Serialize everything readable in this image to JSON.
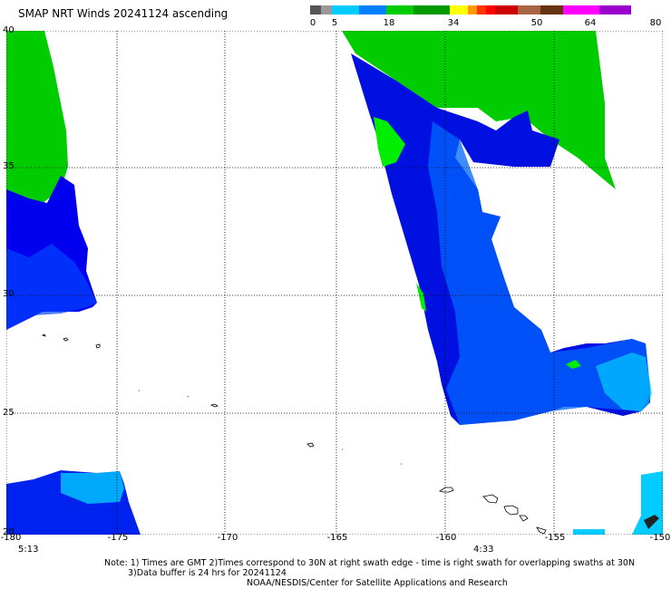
{
  "title": "SMAP NRT Winds 20241124 ascending",
  "scale": {
    "labels": [
      "0",
      "5",
      "18",
      "34",
      "50",
      "64",
      "80"
    ],
    "colors": [
      "#555555",
      "#999999",
      "#00ccff",
      "#0080ff",
      "#00cc00",
      "#009900",
      "#ffff00",
      "#ff9900",
      "#ff3300",
      "#ff0000",
      "#cc0000",
      "#aa6644",
      "#663311",
      "#ff00ff",
      "#9900cc"
    ]
  },
  "map": {
    "lat_labels": [
      "40",
      "35",
      "30",
      "25",
      "20"
    ],
    "lon_labels": [
      "-180",
      "-175",
      "-170",
      "-165",
      "-160",
      "-155",
      "-150"
    ],
    "times": [
      "5:13",
      "4:33"
    ]
  },
  "notes": {
    "line1": "Note: 1) Times are GMT 2)Times correspond to 30N at right swath edge - time is right swath for overlapping swaths at 30N",
    "line2": "3)Data buffer is 24 hrs for 20241124",
    "line3": "NOAA/NESDIS/Center for Satellite Applications and Research"
  }
}
